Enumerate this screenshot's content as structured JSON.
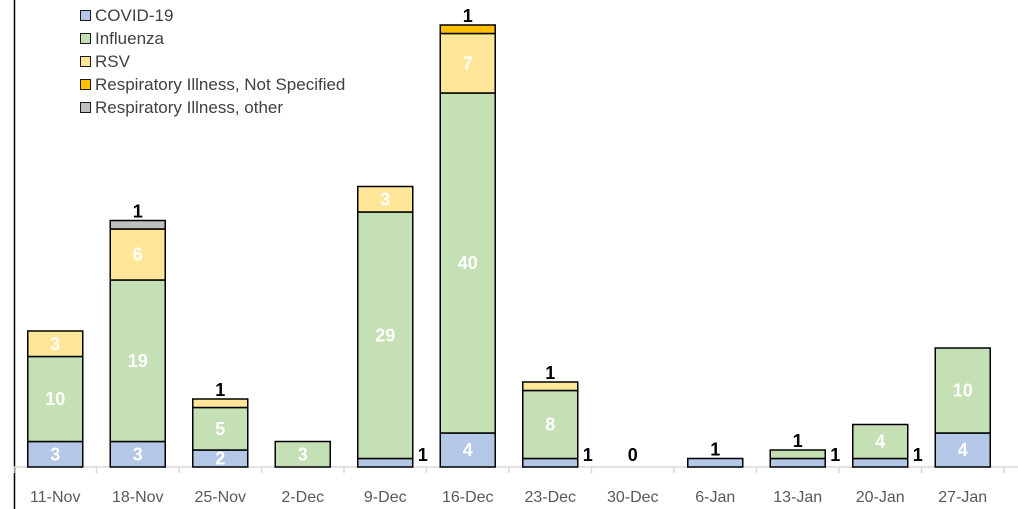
{
  "chart_data": {
    "type": "bar",
    "stacked": true,
    "categories": [
      "11-Nov",
      "18-Nov",
      "25-Nov",
      "2-Dec",
      "9-Dec",
      "16-Dec",
      "23-Dec",
      "30-Dec",
      "6-Jan",
      "13-Jan",
      "20-Jan",
      "27-Jan"
    ],
    "series": [
      {
        "name": "COVID-19",
        "color": "#b4c7e7",
        "values": [
          3,
          3,
          2,
          0,
          1,
          4,
          1,
          0,
          1,
          1,
          1,
          4
        ]
      },
      {
        "name": "Influenza",
        "color": "#c5e0b4",
        "values": [
          10,
          19,
          5,
          3,
          29,
          40,
          8,
          0,
          0,
          1,
          4,
          10
        ]
      },
      {
        "name": "RSV",
        "color": "#ffe699",
        "values": [
          3,
          6,
          1,
          0,
          3,
          7,
          1,
          0,
          0,
          0,
          0,
          0
        ]
      },
      {
        "name": "Respiratory Illness, Not Specified",
        "color": "#ffc000",
        "values": [
          0,
          0,
          0,
          0,
          0,
          1,
          0,
          0,
          0,
          0,
          0,
          0
        ]
      },
      {
        "name": "Respiratory Illness, other",
        "color": "#bfbfbf",
        "values": [
          0,
          1,
          0,
          0,
          0,
          0,
          0,
          0,
          0,
          0,
          0,
          0
        ]
      }
    ],
    "data_labels": [
      {
        "category": "11-Nov",
        "text": "3",
        "series": "COVID-19",
        "style": "inside"
      },
      {
        "category": "11-Nov",
        "text": "10",
        "series": "Influenza",
        "style": "inside"
      },
      {
        "category": "11-Nov",
        "text": "3",
        "series": "RSV",
        "style": "inside"
      },
      {
        "category": "18-Nov",
        "text": "3",
        "series": "COVID-19",
        "style": "inside"
      },
      {
        "category": "18-Nov",
        "text": "19",
        "series": "Influenza",
        "style": "inside"
      },
      {
        "category": "18-Nov",
        "text": "6",
        "series": "RSV",
        "style": "inside"
      },
      {
        "category": "18-Nov",
        "text": "1",
        "series": "Respiratory Illness, other",
        "style": "above"
      },
      {
        "category": "25-Nov",
        "text": "2",
        "series": "COVID-19",
        "style": "inside"
      },
      {
        "category": "25-Nov",
        "text": "5",
        "series": "Influenza",
        "style": "inside"
      },
      {
        "category": "25-Nov",
        "text": "1",
        "series": "RSV",
        "style": "above"
      },
      {
        "category": "2-Dec",
        "text": "3",
        "series": "Influenza",
        "style": "inside"
      },
      {
        "category": "9-Dec",
        "text": "1",
        "series": "COVID-19",
        "style": "right"
      },
      {
        "category": "9-Dec",
        "text": "29",
        "series": "Influenza",
        "style": "inside"
      },
      {
        "category": "9-Dec",
        "text": "3",
        "series": "RSV",
        "style": "inside"
      },
      {
        "category": "16-Dec",
        "text": "4",
        "series": "COVID-19",
        "style": "inside"
      },
      {
        "category": "16-Dec",
        "text": "40",
        "series": "Influenza",
        "style": "inside"
      },
      {
        "category": "16-Dec",
        "text": "7",
        "series": "RSV",
        "style": "inside"
      },
      {
        "category": "16-Dec",
        "text": "1",
        "series": "Respiratory Illness, Not Specified",
        "style": "above"
      },
      {
        "category": "23-Dec",
        "text": "1",
        "series": "COVID-19",
        "style": "right"
      },
      {
        "category": "23-Dec",
        "text": "8",
        "series": "Influenza",
        "style": "inside"
      },
      {
        "category": "23-Dec",
        "text": "1",
        "series": "RSV",
        "style": "above"
      },
      {
        "category": "30-Dec",
        "text": "0",
        "series": "COVID-19",
        "style": "zero"
      },
      {
        "category": "6-Jan",
        "text": "1",
        "series": "COVID-19",
        "style": "above"
      },
      {
        "category": "13-Jan",
        "text": "1",
        "series": "COVID-19",
        "style": "right"
      },
      {
        "category": "13-Jan",
        "text": "1",
        "series": "Influenza",
        "style": "above"
      },
      {
        "category": "20-Jan",
        "text": "1",
        "series": "COVID-19",
        "style": "right"
      },
      {
        "category": "20-Jan",
        "text": "4",
        "series": "Influenza",
        "style": "inside"
      },
      {
        "category": "27-Jan",
        "text": "4",
        "series": "COVID-19",
        "style": "inside"
      },
      {
        "category": "27-Jan",
        "text": "10",
        "series": "Influenza",
        "style": "inside"
      }
    ],
    "title": "",
    "xlabel": "",
    "ylabel": "",
    "ylim": [
      0,
      52
    ],
    "grid": false,
    "legend_position": "top-left"
  }
}
